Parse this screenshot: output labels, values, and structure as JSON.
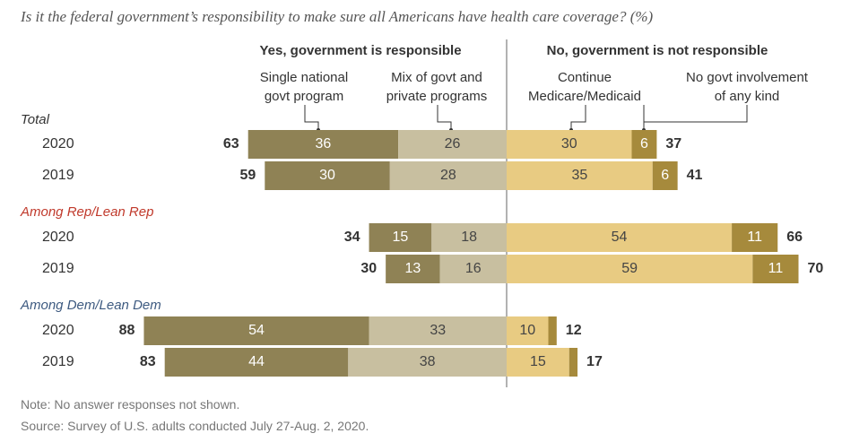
{
  "subtitle": "Is it the federal government’s responsibility to make sure all Americans have health care coverage? (%)",
  "note": "Note: No answer responses not shown.",
  "source": "Source: Survey of U.S. adults conducted July 27-Aug. 2, 2020.",
  "colors": {
    "single_program": "#8f8255",
    "mix_programs": "#c8bfa0",
    "continue_medicare": "#e8cb82",
    "no_govt": "#a68a3c",
    "rep_label": "#c0392b",
    "dem_label": "#3d5a80"
  },
  "chart_data": {
    "type": "bar",
    "orientation": "horizontal",
    "stacked": "diverging",
    "side_headers": {
      "yes": "Yes, government is responsible",
      "no": "No, government is not responsible"
    },
    "series": [
      {
        "name": "Single national govt program",
        "label_lines": [
          "Single national",
          "govt program"
        ],
        "side": "yes"
      },
      {
        "name": "Mix of govt and private programs",
        "label_lines": [
          "Mix of govt and",
          "private programs"
        ],
        "side": "yes"
      },
      {
        "name": "Continue Medicare/Medicaid",
        "label_lines": [
          "Continue",
          "Medicare/Medicaid"
        ],
        "side": "no"
      },
      {
        "name": "No govt involvement of any kind",
        "label_lines": [
          "No govt involvement",
          "of any kind"
        ],
        "side": "no"
      }
    ],
    "groups": [
      {
        "name": "Total",
        "style": "plain",
        "rows": [
          {
            "year": "2020",
            "single": 36,
            "mix": 26,
            "yes_total": 63,
            "medicare": 30,
            "none": 6,
            "no_total": 37
          },
          {
            "year": "2019",
            "single": 30,
            "mix": 28,
            "yes_total": 59,
            "medicare": 35,
            "none": 6,
            "no_total": 41
          }
        ]
      },
      {
        "name": "Among Rep/Lean Rep",
        "style": "rep",
        "rows": [
          {
            "year": "2020",
            "single": 15,
            "mix": 18,
            "yes_total": 34,
            "medicare": 54,
            "none": 11,
            "no_total": 66
          },
          {
            "year": "2019",
            "single": 13,
            "mix": 16,
            "yes_total": 30,
            "medicare": 59,
            "none": 11,
            "no_total": 70
          }
        ]
      },
      {
        "name": "Among Dem/Lean Dem",
        "style": "dem",
        "rows": [
          {
            "year": "2020",
            "single": 54,
            "mix": 33,
            "yes_total": 88,
            "medicare": 10,
            "none": 2,
            "no_total": 12
          },
          {
            "year": "2019",
            "single": 44,
            "mix": 38,
            "yes_total": 83,
            "medicare": 15,
            "none": 2,
            "no_total": 17
          }
        ]
      }
    ]
  }
}
